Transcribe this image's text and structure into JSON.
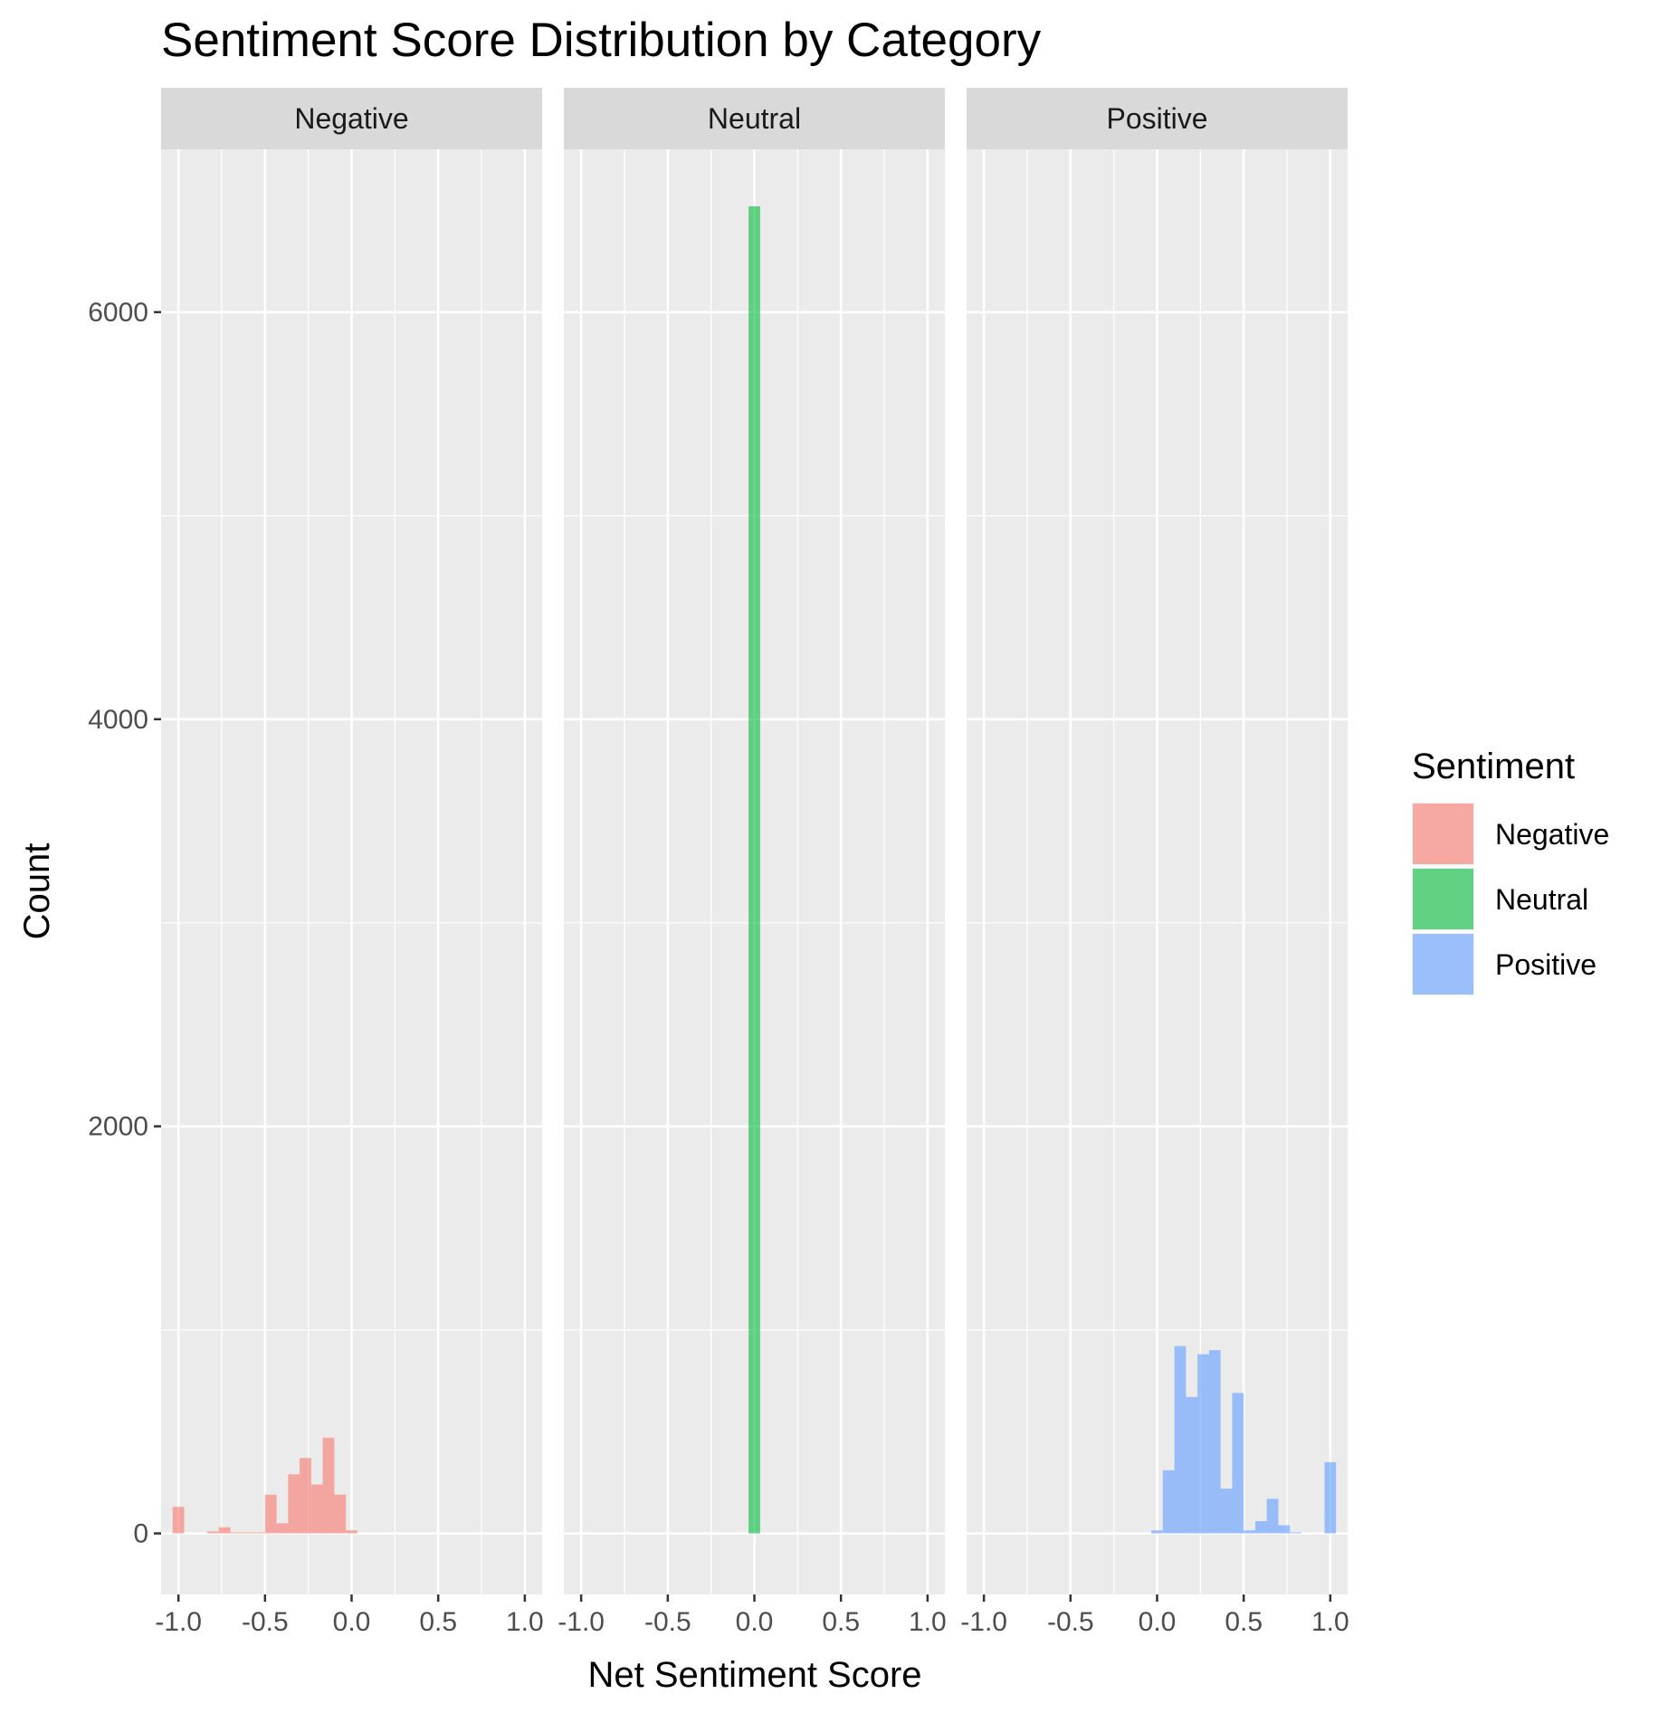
{
  "chart_data": {
    "type": "bar",
    "subtype": "faceted-histogram",
    "title": "Sentiment Score Distribution by Category",
    "xlabel": "Net Sentiment Score",
    "ylabel": "Count",
    "xlim": [
      -1.1,
      1.1
    ],
    "ylim": [
      -300,
      6800
    ],
    "x_ticks": [
      -1.0,
      -0.5,
      0.0,
      0.5,
      1.0
    ],
    "x_tick_labels": [
      "-1.0",
      "-0.5",
      "0.0",
      "0.5",
      "1.0"
    ],
    "y_ticks": [
      0,
      2000,
      4000,
      6000
    ],
    "y_tick_labels": [
      "0",
      "2000",
      "4000",
      "6000"
    ],
    "bin_width": 0.0667,
    "grid": true,
    "legend": {
      "title": "Sentiment",
      "position": "right",
      "entries": [
        "Negative",
        "Neutral",
        "Positive"
      ]
    },
    "series": [
      {
        "name": "Negative",
        "color": "#F8766D",
        "bins": [
          {
            "x": -1.0,
            "count": 130
          },
          {
            "x": -0.8,
            "count": 10
          },
          {
            "x": -0.7333,
            "count": 30
          },
          {
            "x": -0.6667,
            "count": 5
          },
          {
            "x": -0.6,
            "count": 5
          },
          {
            "x": -0.5333,
            "count": 5
          },
          {
            "x": -0.4667,
            "count": 190
          },
          {
            "x": -0.4,
            "count": 50
          },
          {
            "x": -0.3333,
            "count": 290
          },
          {
            "x": -0.2667,
            "count": 370
          },
          {
            "x": -0.2,
            "count": 240
          },
          {
            "x": -0.1333,
            "count": 470
          },
          {
            "x": -0.0667,
            "count": 190
          },
          {
            "x": 0.0,
            "count": 15
          }
        ]
      },
      {
        "name": "Neutral",
        "color": "#00BA38",
        "bins": [
          {
            "x": 0.0,
            "count": 6520
          }
        ]
      },
      {
        "name": "Positive",
        "color": "#619CFF",
        "bins": [
          {
            "x": 0.0,
            "count": 15
          },
          {
            "x": 0.0667,
            "count": 310
          },
          {
            "x": 0.1333,
            "count": 920
          },
          {
            "x": 0.2,
            "count": 670
          },
          {
            "x": 0.2667,
            "count": 880
          },
          {
            "x": 0.3333,
            "count": 900
          },
          {
            "x": 0.4,
            "count": 220
          },
          {
            "x": 0.4667,
            "count": 690
          },
          {
            "x": 0.5333,
            "count": 15
          },
          {
            "x": 0.6,
            "count": 60
          },
          {
            "x": 0.6667,
            "count": 170
          },
          {
            "x": 0.7333,
            "count": 40
          },
          {
            "x": 0.8,
            "count": 5
          },
          {
            "x": 1.0,
            "count": 350
          }
        ]
      }
    ]
  }
}
